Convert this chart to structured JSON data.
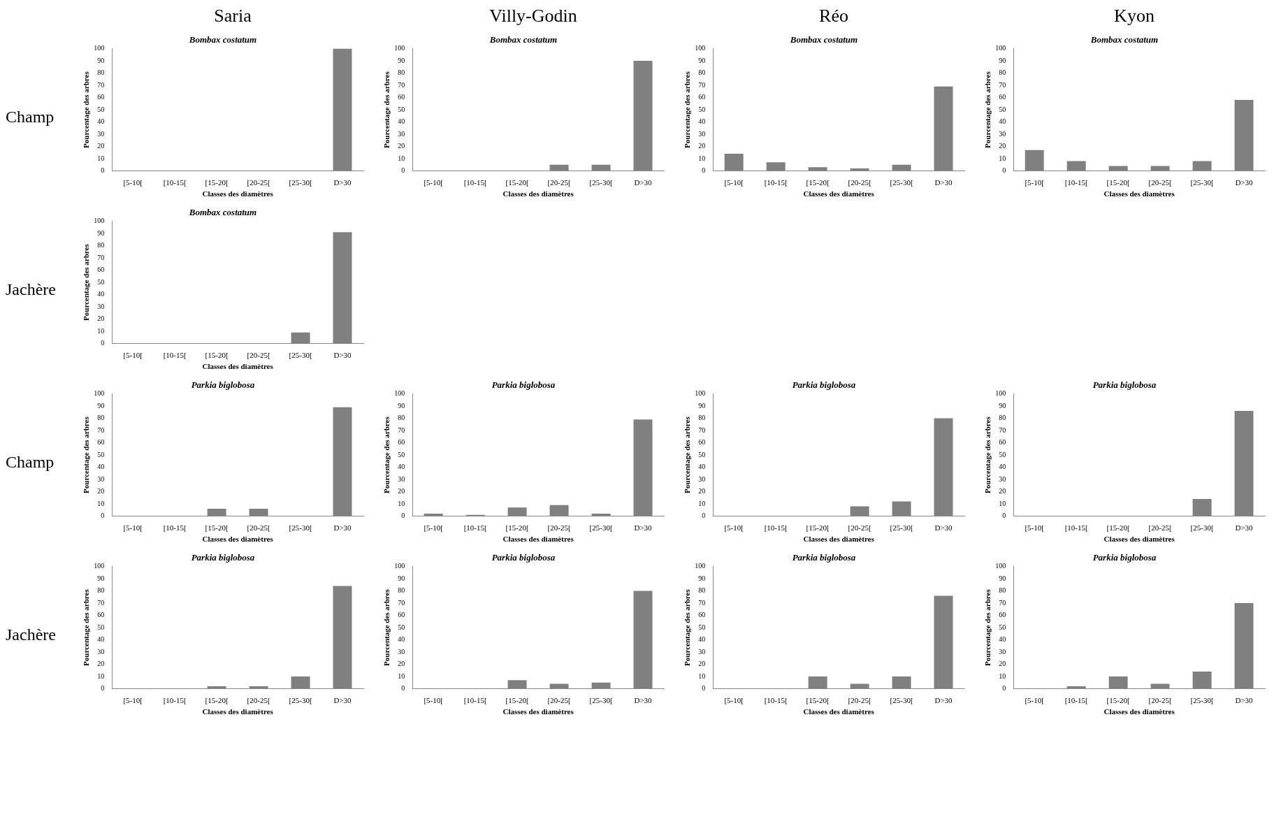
{
  "chart_data": [
    {
      "type": "other",
      "annotations": [
        "Saria",
        "Villy-Godin",
        "Réo",
        "Kyon"
      ]
    },
    {
      "type": "other",
      "title": "Champ"
    },
    {
      "type": "bar",
      "title": "Bombax costatum",
      "xlabel": "Classes des diamètres",
      "ylabel": "Pourcentage des arbres",
      "categories": [
        "[5-10[",
        "[10-15[",
        "[15-20[",
        "[20-25[",
        "[25-30[",
        "D>30"
      ],
      "values": [
        0,
        0,
        0,
        0,
        0,
        100
      ],
      "color": "#808080",
      "ylim": [
        0,
        100
      ],
      "yticks": [
        0,
        10,
        20,
        30,
        40,
        50,
        60,
        70,
        80,
        90,
        100
      ]
    },
    {
      "type": "bar",
      "title": "Bombax costatum",
      "xlabel": "Classes des diamètres",
      "ylabel": "Pourcentage des arbres",
      "categories": [
        "[5-10[",
        "[10-15[",
        "[15-20[",
        "[20-25[",
        "[25-30[",
        "D>30"
      ],
      "values": [
        0,
        0,
        0,
        5,
        5,
        90
      ],
      "color": "#808080",
      "ylim": [
        0,
        100
      ],
      "yticks": [
        0,
        10,
        20,
        30,
        40,
        50,
        60,
        70,
        80,
        90,
        100
      ]
    },
    {
      "type": "bar",
      "title": "Bombax costatum",
      "xlabel": "Classes des diamètres",
      "ylabel": "Pourcentage des arbres",
      "categories": [
        "[5-10[",
        "[10-15[",
        "[15-20[",
        "[20-25[",
        "[25-30[",
        "D>30"
      ],
      "values": [
        14,
        7,
        3,
        2,
        5,
        69
      ],
      "color": "#808080",
      "ylim": [
        0,
        100
      ],
      "yticks": [
        0,
        10,
        20,
        30,
        40,
        50,
        60,
        70,
        80,
        90,
        100
      ]
    },
    {
      "type": "bar",
      "title": "Bombax costatum",
      "xlabel": "Classes des diamètres",
      "ylabel": "Pourcentage des arbres",
      "categories": [
        "[5-10[",
        "[10-15[",
        "[15-20[",
        "[20-25[",
        "[25-30[",
        "D>30"
      ],
      "values": [
        17,
        8,
        4,
        4,
        8,
        58
      ],
      "color": "#808080",
      "ylim": [
        0,
        100
      ],
      "yticks": [
        0,
        10,
        20,
        30,
        40,
        50,
        60,
        70,
        80,
        90,
        100
      ]
    },
    {
      "type": "other",
      "title": "Jachère"
    },
    {
      "type": "bar",
      "title": "Bombax costatum",
      "xlabel": "Classes des diamètres",
      "ylabel": "Pourcentage des arbres",
      "categories": [
        "[5-10[",
        "[10-15[",
        "[15-20[",
        "[20-25[",
        "[25-30[",
        "D>30"
      ],
      "values": [
        0,
        0,
        0,
        0,
        9,
        91
      ],
      "color": "#808080",
      "ylim": [
        0,
        100
      ],
      "yticks": [
        0,
        10,
        20,
        30,
        40,
        50,
        60,
        70,
        80,
        90,
        100
      ]
    },
    {
      "type": "other",
      "title": "Champ"
    },
    {
      "type": "bar",
      "title": "Parkia biglobosa",
      "xlabel": "Classes des diamètres",
      "ylabel": "Pourcentage des arbres",
      "categories": [
        "[5-10[",
        "[10-15[",
        "[15-20[",
        "[20-25[",
        "[25-30[",
        "D>30"
      ],
      "values": [
        0,
        0,
        6,
        6,
        0,
        89
      ],
      "color": "#808080",
      "ylim": [
        0,
        100
      ],
      "yticks": [
        0,
        10,
        20,
        30,
        40,
        50,
        60,
        70,
        80,
        90,
        100
      ]
    },
    {
      "type": "bar",
      "title": "Parkia biglobosa",
      "xlabel": "Classes des diamètres",
      "ylabel": "Pourcentage des arbres",
      "categories": [
        "[5-10[",
        "[10-15[",
        "[15-20[",
        "[20-25[",
        "[25-30[",
        "D>30"
      ],
      "values": [
        2,
        1,
        7,
        9,
        2,
        79
      ],
      "color": "#808080",
      "ylim": [
        0,
        100
      ],
      "yticks": [
        0,
        10,
        20,
        30,
        40,
        50,
        60,
        70,
        80,
        90,
        100
      ]
    },
    {
      "type": "bar",
      "title": "Parkia biglobosa",
      "xlabel": "Classes des diamètres",
      "ylabel": "Pourcentage des arbres",
      "categories": [
        "[5-10[",
        "[10-15[",
        "[15-20[",
        "[20-25[",
        "[25-30[",
        "D>30"
      ],
      "values": [
        0,
        0,
        0,
        8,
        12,
        80
      ],
      "color": "#808080",
      "ylim": [
        0,
        100
      ],
      "yticks": [
        0,
        10,
        20,
        30,
        40,
        50,
        60,
        70,
        80,
        90,
        100
      ]
    },
    {
      "type": "bar",
      "title": "Parkia biglobosa",
      "xlabel": "Classes des diamètres",
      "ylabel": "Pourcentage des arbres",
      "categories": [
        "[5-10[",
        "[10-15[",
        "[15-20[",
        "[20-25[",
        "[25-30[",
        "D>30"
      ],
      "values": [
        0,
        0,
        0,
        0,
        14,
        86
      ],
      "color": "#808080",
      "ylim": [
        0,
        100
      ],
      "yticks": [
        0,
        10,
        20,
        30,
        40,
        50,
        60,
        70,
        80,
        90,
        100
      ]
    },
    {
      "type": "other",
      "title": "Jachère"
    },
    {
      "type": "bar",
      "title": "Parkia biglobosa",
      "xlabel": "Classes des diamètres",
      "ylabel": "Pourcentage des arbres",
      "categories": [
        "[5-10[",
        "[10-15[",
        "[15-20[",
        "[20-25[",
        "[25-30[",
        "D>30"
      ],
      "values": [
        0,
        0,
        2,
        2,
        10,
        84
      ],
      "color": "#808080",
      "ylim": [
        0,
        100
      ],
      "yticks": [
        0,
        10,
        20,
        30,
        40,
        50,
        60,
        70,
        80,
        90,
        100
      ]
    },
    {
      "type": "bar",
      "title": "Parkia biglobosa",
      "xlabel": "Classes des diamètres",
      "ylabel": "Pourcentage des arbres",
      "categories": [
        "[5-10[",
        "[10-15[",
        "[15-20[",
        "[20-25[",
        "[25-30[",
        "D>30"
      ],
      "values": [
        0,
        0,
        7,
        4,
        5,
        80
      ],
      "color": "#808080",
      "ylim": [
        0,
        100
      ],
      "yticks": [
        0,
        10,
        20,
        30,
        40,
        50,
        60,
        70,
        80,
        90,
        100
      ]
    },
    {
      "type": "bar",
      "title": "Parkia biglobosa",
      "xlabel": "Classes des diamètres",
      "ylabel": "Pourcentage des arbres",
      "categories": [
        "[5-10[",
        "[10-15[",
        "[15-20[",
        "[20-25[",
        "[25-30[",
        "D>30"
      ],
      "values": [
        0,
        0,
        10,
        4,
        10,
        76
      ],
      "color": "#808080",
      "ylim": [
        0,
        100
      ],
      "yticks": [
        0,
        10,
        20,
        30,
        40,
        50,
        60,
        70,
        80,
        90,
        100
      ]
    },
    {
      "type": "bar",
      "title": "Parkia biglobosa",
      "xlabel": "Classes des diamètres",
      "ylabel": "Pourcentage des arbres",
      "categories": [
        "[5-10[",
        "[10-15[",
        "[15-20[",
        "[20-25[",
        "[25-30[",
        "D>30"
      ],
      "values": [
        0,
        2,
        10,
        4,
        14,
        70
      ],
      "color": "#808080",
      "ylim": [
        0,
        100
      ],
      "yticks": [
        0,
        10,
        20,
        30,
        40,
        50,
        60,
        70,
        80,
        90,
        100
      ]
    }
  ]
}
